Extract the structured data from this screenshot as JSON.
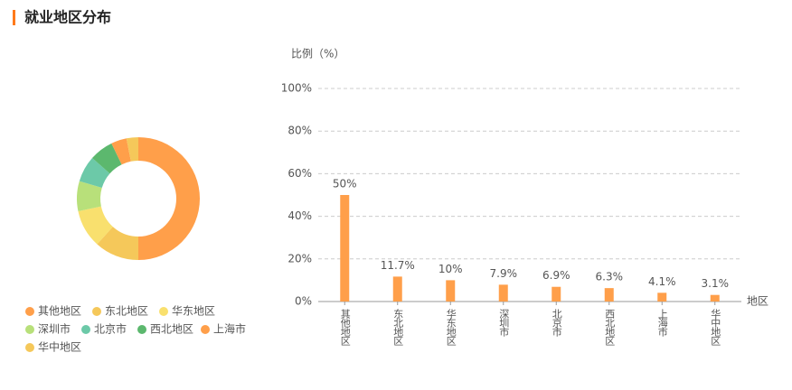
{
  "header": {
    "title": "就业地区分布"
  },
  "chart_data": [
    {
      "type": "donut",
      "categories": [
        "其他地区",
        "东北地区",
        "华东地区",
        "深圳市",
        "北京市",
        "西北地区",
        "上海市",
        "华中地区"
      ],
      "values": [
        50,
        11.7,
        10,
        7.9,
        6.9,
        6.3,
        4.1,
        3.1
      ],
      "colors": [
        "#ff9f4a",
        "#f5c85a",
        "#f9e06e",
        "#b8e07a",
        "#6cc9a8",
        "#5cb86e",
        "#ff9f4a",
        "#f5c85a"
      ]
    },
    {
      "type": "bar",
      "y_label": "比例（%）",
      "x_label": "地区",
      "categories": [
        "其他地区",
        "东北地区",
        "华东地区",
        "深圳市",
        "北京市",
        "西北地区",
        "上海市",
        "华中地区"
      ],
      "values": [
        50,
        11.7,
        10,
        7.9,
        6.9,
        6.3,
        4.1,
        3.1
      ],
      "value_labels": [
        "50%",
        "11.7%",
        "10%",
        "7.9%",
        "6.9%",
        "6.3%",
        "4.1%",
        "3.1%"
      ],
      "color": "#ff9f4a",
      "ylim": [
        0,
        100
      ],
      "yticks": [
        {
          "value": 0,
          "label": "0%"
        },
        {
          "value": 20,
          "label": "20%"
        },
        {
          "value": 40,
          "label": "40%"
        },
        {
          "value": 60,
          "label": "60%"
        },
        {
          "value": 80,
          "label": "80%"
        },
        {
          "value": 100,
          "label": "100%"
        }
      ],
      "grid": true
    }
  ]
}
